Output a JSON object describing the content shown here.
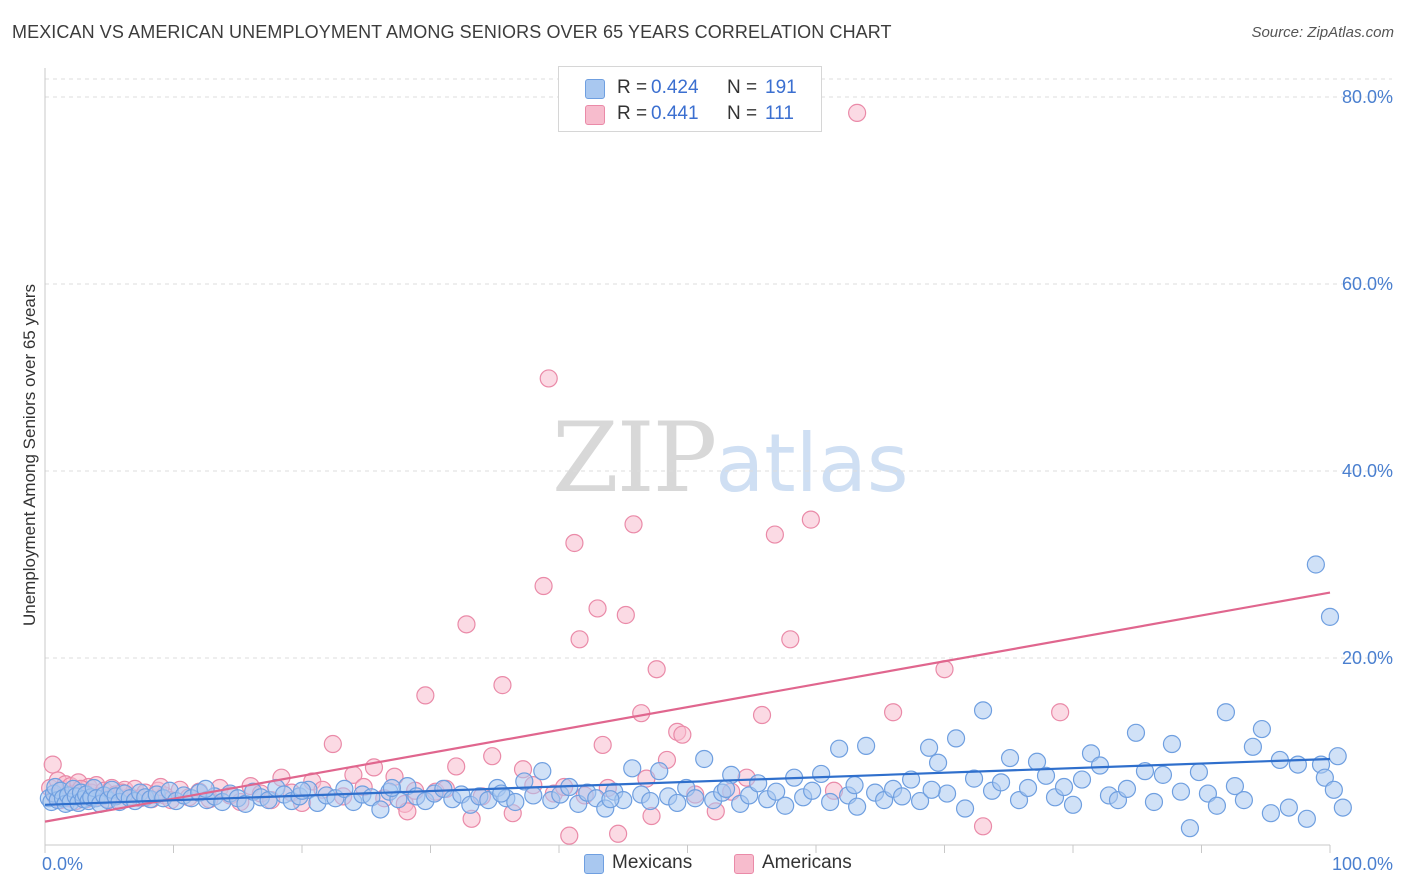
{
  "title": "MEXICAN VS AMERICAN UNEMPLOYMENT AMONG SENIORS OVER 65 YEARS CORRELATION CHART",
  "source": "Source: ZipAtlas.com",
  "watermark": {
    "zip": "ZIP",
    "atlas": "atlas"
  },
  "legend": {
    "rows": [
      {
        "r_label": "R =",
        "r_value": "0.424",
        "n_label": "N =",
        "n_value": "191",
        "color": "#a9c8f0",
        "border": "#6f9fe0"
      },
      {
        "r_label": "R =",
        "r_value": "0.441",
        "n_label": "N =",
        "n_value": "111",
        "color": "#f7bccd",
        "border": "#ea8aa8"
      }
    ]
  },
  "colors": {
    "mexicans_fill": "#a9c8f0",
    "mexicans_stroke": "#6f9fe0",
    "mexicans_line": "#2f6fcc",
    "americans_fill": "#f7bccd",
    "americans_stroke": "#ea8aa8",
    "americans_line": "#e0668e"
  },
  "chart_data": {
    "type": "scatter",
    "title": "MEXICAN VS AMERICAN UNEMPLOYMENT AMONG SENIORS OVER 65 YEARS CORRELATION CHART",
    "xlabel": "",
    "ylabel": "Unemployment Among Seniors over 65 years",
    "xlim": [
      0,
      100
    ],
    "ylim": [
      0,
      80
    ],
    "x_tick_labels": [
      "0.0%",
      "100.0%"
    ],
    "y_ticks": [
      20,
      40,
      60,
      80
    ],
    "y_tick_labels": [
      "20.0%",
      "40.0%",
      "60.0%",
      "80.0%"
    ],
    "grid": "horizontal dashed",
    "legend_position": "top-center",
    "series": [
      {
        "name": "Mexicans",
        "trend": [
          [
            0,
            4.3
          ],
          [
            100,
            9.2
          ]
        ],
        "points": [
          [
            0.3,
            5.0
          ],
          [
            0.5,
            4.6
          ],
          [
            0.7,
            5.5
          ],
          [
            0.8,
            6.2
          ],
          [
            1.0,
            4.8
          ],
          [
            1.2,
            5.8
          ],
          [
            1.4,
            5.0
          ],
          [
            1.6,
            4.4
          ],
          [
            1.8,
            5.3
          ],
          [
            2.0,
            4.6
          ],
          [
            2.2,
            6.0
          ],
          [
            2.4,
            5.2
          ],
          [
            2.6,
            4.5
          ],
          [
            2.8,
            5.6
          ],
          [
            3.0,
            4.9
          ],
          [
            3.2,
            5.4
          ],
          [
            3.4,
            4.7
          ],
          [
            3.6,
            5.1
          ],
          [
            3.8,
            6.1
          ],
          [
            4.0,
            5.0
          ],
          [
            4.3,
            4.4
          ],
          [
            4.6,
            5.3
          ],
          [
            4.9,
            4.8
          ],
          [
            5.2,
            5.9
          ],
          [
            5.5,
            5.2
          ],
          [
            5.8,
            4.6
          ],
          [
            6.2,
            5.5
          ],
          [
            6.6,
            5.0
          ],
          [
            7.0,
            4.7
          ],
          [
            7.4,
            5.6
          ],
          [
            7.8,
            5.1
          ],
          [
            8.2,
            4.9
          ],
          [
            8.7,
            5.4
          ],
          [
            9.2,
            5.0
          ],
          [
            9.7,
            5.8
          ],
          [
            10.2,
            4.7
          ],
          [
            10.8,
            5.3
          ],
          [
            11.4,
            5.0
          ],
          [
            12.0,
            5.6
          ],
          [
            12.6,
            4.8
          ],
          [
            13.2,
            5.2
          ],
          [
            13.8,
            4.6
          ],
          [
            14.4,
            5.5
          ],
          [
            15.0,
            5.0
          ],
          [
            15.6,
            4.4
          ],
          [
            16.2,
            5.7
          ],
          [
            16.8,
            5.1
          ],
          [
            17.4,
            4.8
          ],
          [
            18.0,
            6.1
          ],
          [
            18.6,
            5.4
          ],
          [
            19.2,
            4.7
          ],
          [
            19.8,
            5.2
          ],
          [
            20.5,
            5.9
          ],
          [
            21.2,
            4.5
          ],
          [
            21.9,
            5.3
          ],
          [
            22.6,
            5.0
          ],
          [
            23.3,
            6.0
          ],
          [
            24.0,
            4.6
          ],
          [
            24.7,
            5.4
          ],
          [
            25.4,
            5.1
          ],
          [
            26.1,
            3.8
          ],
          [
            26.8,
            5.7
          ],
          [
            27.5,
            4.9
          ],
          [
            28.2,
            6.3
          ],
          [
            28.9,
            5.2
          ],
          [
            29.6,
            4.7
          ],
          [
            30.3,
            5.5
          ],
          [
            31.0,
            6.0
          ],
          [
            31.7,
            4.9
          ],
          [
            32.4,
            5.4
          ],
          [
            33.1,
            4.3
          ],
          [
            33.8,
            5.2
          ],
          [
            34.5,
            4.8
          ],
          [
            35.2,
            6.1
          ],
          [
            35.9,
            5.0
          ],
          [
            36.6,
            4.6
          ],
          [
            37.3,
            6.8
          ],
          [
            38.0,
            5.3
          ],
          [
            38.7,
            7.9
          ],
          [
            39.4,
            4.8
          ],
          [
            40.1,
            5.4
          ],
          [
            40.8,
            6.2
          ],
          [
            41.5,
            4.4
          ],
          [
            42.2,
            5.6
          ],
          [
            42.9,
            5.0
          ],
          [
            43.6,
            3.9
          ],
          [
            44.3,
            5.7
          ],
          [
            45.0,
            4.8
          ],
          [
            45.7,
            8.2
          ],
          [
            46.4,
            5.4
          ],
          [
            47.1,
            4.7
          ],
          [
            47.8,
            7.9
          ],
          [
            48.5,
            5.2
          ],
          [
            49.2,
            4.5
          ],
          [
            49.9,
            6.1
          ],
          [
            50.6,
            5.0
          ],
          [
            51.3,
            9.2
          ],
          [
            52.0,
            4.8
          ],
          [
            52.7,
            5.6
          ],
          [
            53.4,
            7.5
          ],
          [
            54.1,
            4.4
          ],
          [
            54.8,
            5.3
          ],
          [
            55.5,
            6.6
          ],
          [
            56.2,
            4.9
          ],
          [
            56.9,
            5.7
          ],
          [
            57.6,
            4.2
          ],
          [
            58.3,
            7.2
          ],
          [
            59.0,
            5.1
          ],
          [
            59.7,
            5.8
          ],
          [
            60.4,
            7.6
          ],
          [
            61.1,
            4.6
          ],
          [
            61.8,
            10.3
          ],
          [
            62.5,
            5.3
          ],
          [
            63.2,
            4.1
          ],
          [
            63.9,
            10.6
          ],
          [
            64.6,
            5.6
          ],
          [
            65.3,
            4.8
          ],
          [
            66.0,
            6.0
          ],
          [
            66.7,
            5.2
          ],
          [
            67.4,
            7.0
          ],
          [
            68.1,
            4.7
          ],
          [
            68.8,
            10.4
          ],
          [
            69.5,
            8.8
          ],
          [
            70.2,
            5.5
          ],
          [
            70.9,
            11.4
          ],
          [
            71.6,
            3.9
          ],
          [
            72.3,
            7.1
          ],
          [
            73.0,
            14.4
          ],
          [
            73.7,
            5.8
          ],
          [
            74.4,
            6.7
          ],
          [
            75.1,
            9.3
          ],
          [
            75.8,
            4.8
          ],
          [
            76.5,
            6.1
          ],
          [
            77.2,
            8.9
          ],
          [
            77.9,
            7.4
          ],
          [
            78.6,
            5.1
          ],
          [
            79.3,
            6.2
          ],
          [
            80.0,
            4.3
          ],
          [
            80.7,
            7.0
          ],
          [
            81.4,
            9.8
          ],
          [
            82.1,
            8.5
          ],
          [
            82.8,
            5.3
          ],
          [
            83.5,
            4.8
          ],
          [
            84.2,
            6.0
          ],
          [
            84.9,
            12.0
          ],
          [
            85.6,
            7.9
          ],
          [
            86.3,
            4.6
          ],
          [
            87.0,
            7.5
          ],
          [
            87.7,
            10.8
          ],
          [
            88.4,
            5.7
          ],
          [
            89.1,
            1.8
          ],
          [
            89.8,
            7.8
          ],
          [
            90.5,
            5.5
          ],
          [
            91.2,
            4.2
          ],
          [
            91.9,
            14.2
          ],
          [
            92.6,
            6.3
          ],
          [
            93.3,
            4.8
          ],
          [
            94.0,
            10.5
          ],
          [
            94.7,
            12.4
          ],
          [
            95.4,
            3.4
          ],
          [
            96.1,
            9.1
          ],
          [
            96.8,
            4.0
          ],
          [
            97.5,
            8.6
          ],
          [
            98.2,
            2.8
          ],
          [
            98.9,
            30.0
          ],
          [
            99.3,
            8.6
          ],
          [
            99.6,
            7.2
          ],
          [
            100.0,
            24.4
          ],
          [
            100.3,
            5.9
          ],
          [
            100.6,
            9.5
          ],
          [
            101.0,
            4.0
          ],
          [
            101.3,
            11.7
          ],
          [
            101.6,
            8.5
          ],
          [
            101.9,
            14.6
          ],
          [
            102.2,
            7.0
          ],
          [
            102.5,
            13.3
          ],
          [
            102.8,
            7.5
          ],
          [
            103.1,
            18.4
          ],
          [
            104.2,
            13.3
          ],
          [
            12.5,
            6.0
          ],
          [
            20.0,
            5.8
          ],
          [
            27.0,
            6.1
          ],
          [
            35.5,
            5.5
          ],
          [
            44.0,
            4.9
          ],
          [
            53.0,
            6.0
          ],
          [
            63.0,
            6.4
          ],
          [
            69.0,
            5.9
          ]
        ]
      },
      {
        "name": "Americans",
        "trend": [
          [
            0,
            2.5
          ],
          [
            100,
            27.0
          ]
        ],
        "points": [
          [
            0.4,
            6.1
          ],
          [
            0.6,
            8.6
          ],
          [
            0.8,
            5.2
          ],
          [
            1.0,
            6.9
          ],
          [
            1.2,
            4.8
          ],
          [
            1.4,
            5.9
          ],
          [
            1.6,
            6.5
          ],
          [
            1.8,
            5.0
          ],
          [
            2.0,
            6.3
          ],
          [
            2.2,
            5.5
          ],
          [
            2.4,
            4.7
          ],
          [
            2.6,
            6.7
          ],
          [
            2.8,
            5.3
          ],
          [
            3.0,
            5.9
          ],
          [
            3.2,
            4.9
          ],
          [
            3.4,
            6.2
          ],
          [
            3.6,
            5.6
          ],
          [
            3.8,
            5.0
          ],
          [
            4.0,
            6.4
          ],
          [
            4.3,
            5.2
          ],
          [
            4.6,
            5.8
          ],
          [
            4.9,
            4.9
          ],
          [
            5.2,
            6.1
          ],
          [
            5.5,
            5.4
          ],
          [
            5.8,
            4.8
          ],
          [
            6.2,
            5.9
          ],
          [
            6.6,
            5.2
          ],
          [
            7.0,
            6.0
          ],
          [
            7.4,
            5.0
          ],
          [
            7.8,
            5.6
          ],
          [
            8.3,
            4.9
          ],
          [
            8.8,
            5.8
          ],
          [
            9.3,
            5.3
          ],
          [
            9.8,
            4.8
          ],
          [
            10.5,
            5.9
          ],
          [
            11.2,
            5.1
          ],
          [
            12.0,
            5.7
          ],
          [
            12.8,
            4.9
          ],
          [
            13.6,
            6.1
          ],
          [
            14.4,
            5.3
          ],
          [
            15.2,
            4.6
          ],
          [
            16.0,
            6.3
          ],
          [
            16.8,
            5.5
          ],
          [
            17.6,
            4.8
          ],
          [
            18.4,
            7.2
          ],
          [
            19.2,
            5.6
          ],
          [
            20.0,
            4.5
          ],
          [
            20.8,
            6.8
          ],
          [
            21.6,
            5.9
          ],
          [
            22.4,
            10.8
          ],
          [
            23.2,
            5.2
          ],
          [
            24.0,
            7.5
          ],
          [
            24.8,
            6.2
          ],
          [
            25.6,
            8.3
          ],
          [
            26.4,
            5.0
          ],
          [
            27.2,
            7.3
          ],
          [
            28.0,
            4.4
          ],
          [
            28.8,
            5.8
          ],
          [
            28.2,
            3.6
          ],
          [
            29.6,
            16.0
          ],
          [
            30.4,
            5.7
          ],
          [
            31.2,
            6.0
          ],
          [
            32.0,
            8.4
          ],
          [
            32.8,
            23.6
          ],
          [
            33.2,
            2.8
          ],
          [
            34.0,
            5.2
          ],
          [
            34.8,
            9.5
          ],
          [
            35.6,
            17.1
          ],
          [
            36.4,
            3.4
          ],
          [
            37.2,
            8.1
          ],
          [
            38.0,
            6.4
          ],
          [
            38.8,
            27.7
          ],
          [
            39.2,
            49.9
          ],
          [
            39.6,
            5.5
          ],
          [
            40.4,
            6.2
          ],
          [
            40.8,
            1.0
          ],
          [
            41.2,
            32.3
          ],
          [
            41.6,
            22.0
          ],
          [
            42.0,
            5.3
          ],
          [
            43.0,
            25.3
          ],
          [
            43.4,
            10.7
          ],
          [
            43.8,
            6.1
          ],
          [
            44.6,
            1.2
          ],
          [
            45.2,
            24.6
          ],
          [
            45.8,
            34.3
          ],
          [
            46.4,
            14.1
          ],
          [
            46.8,
            7.1
          ],
          [
            47.2,
            3.1
          ],
          [
            47.6,
            18.8
          ],
          [
            48.4,
            9.1
          ],
          [
            49.2,
            12.1
          ],
          [
            49.6,
            11.8
          ],
          [
            50.6,
            5.4
          ],
          [
            52.2,
            3.6
          ],
          [
            53.4,
            5.7
          ],
          [
            54.6,
            7.2
          ],
          [
            55.8,
            13.9
          ],
          [
            56.8,
            33.2
          ],
          [
            58.0,
            22.0
          ],
          [
            59.6,
            34.8
          ],
          [
            61.4,
            5.8
          ],
          [
            63.2,
            78.3
          ],
          [
            66.0,
            14.2
          ],
          [
            70.0,
            18.8
          ],
          [
            73.0,
            2.0
          ],
          [
            79.0,
            14.2
          ],
          [
            2.8,
            6.0
          ],
          [
            6.0,
            5.6
          ],
          [
            9.0,
            6.2
          ]
        ]
      }
    ]
  },
  "bottom_legend": [
    {
      "label": "Mexicans"
    },
    {
      "label": "Americans"
    }
  ]
}
